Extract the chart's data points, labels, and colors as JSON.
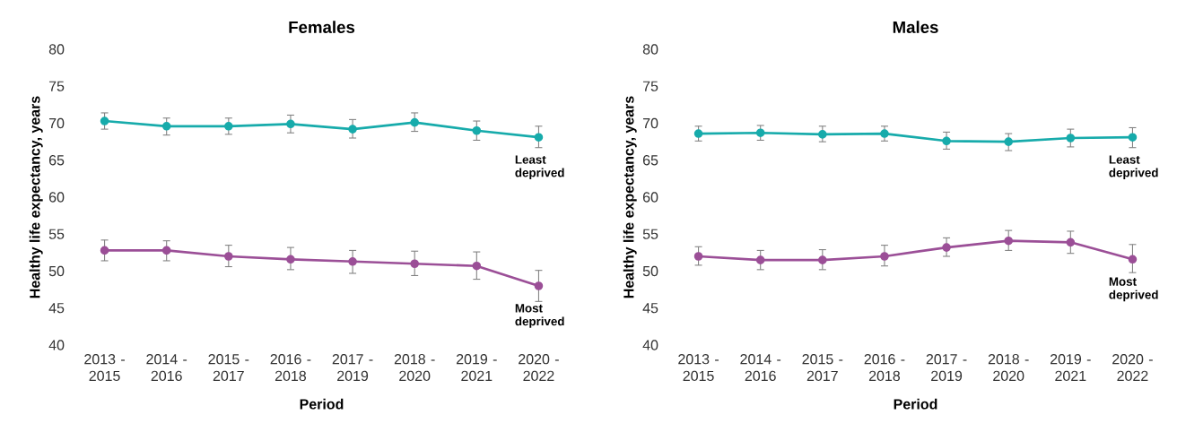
{
  "chart_data": [
    {
      "type": "line",
      "title": "Females",
      "xlabel": "Period",
      "ylabel": "Healthy  life  expectancy, years",
      "categories": [
        "2013 - 2015",
        "2014 - 2016",
        "2015 - 2017",
        "2016 - 2018",
        "2017 - 2019",
        "2018 - 2020",
        "2019 - 2021",
        "2020 - 2022"
      ],
      "ylim": [
        40,
        80
      ],
      "yticks": [
        40,
        45,
        50,
        55,
        60,
        65,
        70,
        75,
        80
      ],
      "marker": "circle",
      "line_style": "solid",
      "series": [
        {
          "name": "Least deprived",
          "color": "#17abab",
          "values": [
            70.3,
            69.6,
            69.6,
            69.9,
            69.2,
            70.1,
            69.0,
            68.1
          ],
          "errors": [
            [
              69.2,
              71.4
            ],
            [
              68.4,
              70.7
            ],
            [
              68.5,
              70.7
            ],
            [
              68.7,
              71.1
            ],
            [
              68.0,
              70.5
            ],
            [
              68.9,
              71.4
            ],
            [
              67.7,
              70.3
            ],
            [
              66.7,
              69.6
            ]
          ]
        },
        {
          "name": "Most deprived",
          "color": "#9b4f97",
          "values": [
            52.8,
            52.8,
            52.0,
            51.6,
            51.3,
            51.0,
            50.7,
            48.0
          ],
          "errors": [
            [
              51.4,
              54.2
            ],
            [
              51.4,
              54.1
            ],
            [
              50.6,
              53.5
            ],
            [
              50.2,
              53.2
            ],
            [
              49.7,
              52.8
            ],
            [
              49.4,
              52.7
            ],
            [
              48.9,
              52.6
            ],
            [
              45.9,
              50.1
            ]
          ]
        }
      ]
    },
    {
      "type": "line",
      "title": "Males",
      "xlabel": "Period",
      "ylabel": "Healthy  life  expectancy, years",
      "categories": [
        "2013 - 2015",
        "2014 - 2016",
        "2015 - 2017",
        "2016 - 2018",
        "2017 - 2019",
        "2018 - 2020",
        "2019 - 2021",
        "2020 - 2022"
      ],
      "ylim": [
        40,
        80
      ],
      "yticks": [
        40,
        45,
        50,
        55,
        60,
        65,
        70,
        75,
        80
      ],
      "marker": "circle",
      "line_style": "solid",
      "series": [
        {
          "name": "Least deprived",
          "color": "#17abab",
          "values": [
            68.6,
            68.7,
            68.5,
            68.6,
            67.6,
            67.5,
            68.0,
            68.1
          ],
          "errors": [
            [
              67.6,
              69.6
            ],
            [
              67.7,
              69.7
            ],
            [
              67.5,
              69.6
            ],
            [
              67.6,
              69.6
            ],
            [
              66.5,
              68.8
            ],
            [
              66.3,
              68.6
            ],
            [
              66.8,
              69.2
            ],
            [
              66.7,
              69.4
            ]
          ]
        },
        {
          "name": "Most deprived",
          "color": "#9b4f97",
          "values": [
            52.0,
            51.5,
            51.5,
            52.0,
            53.2,
            54.1,
            53.9,
            51.6
          ],
          "errors": [
            [
              50.8,
              53.3
            ],
            [
              50.2,
              52.8
            ],
            [
              50.2,
              52.9
            ],
            [
              50.7,
              53.5
            ],
            [
              52.0,
              54.5
            ],
            [
              52.8,
              55.5
            ],
            [
              52.4,
              55.4
            ],
            [
              49.8,
              53.6
            ]
          ]
        }
      ]
    }
  ]
}
